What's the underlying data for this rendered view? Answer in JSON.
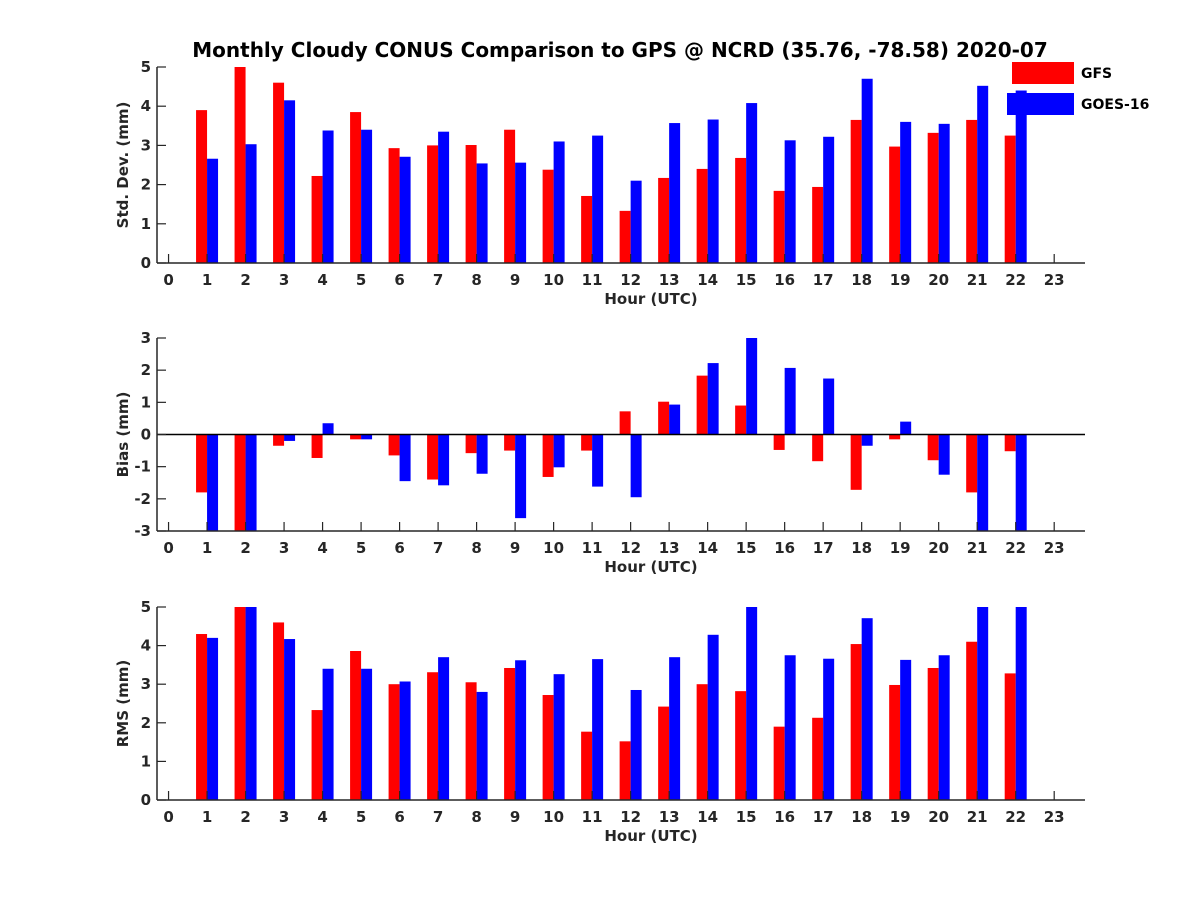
{
  "title": "Monthly Cloudy CONUS Comparison to GPS @ NCRD (35.76, -78.58) 2020-07",
  "legend": [
    {
      "label": "GFS",
      "color": "#ff0000"
    },
    {
      "label": "GOES-16",
      "color": "#0000ff"
    }
  ],
  "chart_data": [
    {
      "type": "bar",
      "ylabel": "Std. Dev. (mm)",
      "xlabel": "Hour (UTC)",
      "x": [
        0,
        1,
        2,
        3,
        4,
        5,
        6,
        7,
        8,
        9,
        10,
        11,
        12,
        13,
        14,
        15,
        16,
        17,
        18,
        19,
        20,
        21,
        22,
        23
      ],
      "xlim": [
        -0.3,
        23.8
      ],
      "ylim": [
        0,
        5
      ],
      "yticks": [
        0,
        1,
        2,
        3,
        4,
        5
      ],
      "series": [
        {
          "name": "GFS",
          "color": "#ff0000",
          "values": [
            null,
            3.9,
            5.0,
            4.6,
            2.22,
            3.85,
            2.93,
            3.0,
            3.01,
            3.4,
            2.38,
            1.71,
            1.33,
            2.17,
            2.4,
            2.68,
            1.84,
            1.94,
            3.65,
            2.97,
            3.32,
            3.65,
            3.25,
            null
          ]
        },
        {
          "name": "GOES-16",
          "color": "#0000ff",
          "values": [
            null,
            2.66,
            3.03,
            4.15,
            3.38,
            3.4,
            2.71,
            3.35,
            2.54,
            2.56,
            3.1,
            3.25,
            2.1,
            3.57,
            3.66,
            4.08,
            3.13,
            3.22,
            4.7,
            3.6,
            3.55,
            4.52,
            4.4,
            null
          ]
        }
      ]
    },
    {
      "type": "bar",
      "ylabel": "Bias (mm)",
      "xlabel": "Hour (UTC)",
      "x": [
        0,
        1,
        2,
        3,
        4,
        5,
        6,
        7,
        8,
        9,
        10,
        11,
        12,
        13,
        14,
        15,
        16,
        17,
        18,
        19,
        20,
        21,
        22,
        23
      ],
      "xlim": [
        -0.3,
        23.8
      ],
      "ylim": [
        -3,
        3
      ],
      "yticks": [
        -3,
        -2,
        -1,
        0,
        1,
        2,
        3
      ],
      "zero_line": true,
      "series": [
        {
          "name": "GFS",
          "color": "#ff0000",
          "values": [
            null,
            -1.8,
            -3.0,
            -0.35,
            -0.73,
            -0.15,
            -0.65,
            -1.4,
            -0.58,
            -0.5,
            -1.32,
            -0.5,
            0.72,
            1.02,
            1.83,
            0.9,
            -0.48,
            -0.83,
            -1.72,
            -0.15,
            -0.8,
            -1.8,
            -0.52,
            null
          ]
        },
        {
          "name": "GOES-16",
          "color": "#0000ff",
          "values": [
            null,
            -3.0,
            -3.0,
            -0.2,
            0.35,
            -0.15,
            -1.45,
            -1.58,
            -1.22,
            -2.6,
            -1.02,
            -1.62,
            -1.95,
            0.93,
            2.22,
            3.0,
            2.07,
            1.74,
            -0.35,
            0.4,
            -1.25,
            -3.0,
            -3.0,
            null
          ]
        }
      ]
    },
    {
      "type": "bar",
      "ylabel": "RMS (mm)",
      "xlabel": "Hour (UTC)",
      "x": [
        0,
        1,
        2,
        3,
        4,
        5,
        6,
        7,
        8,
        9,
        10,
        11,
        12,
        13,
        14,
        15,
        16,
        17,
        18,
        19,
        20,
        21,
        22,
        23
      ],
      "xlim": [
        -0.3,
        23.8
      ],
      "ylim": [
        0,
        5
      ],
      "yticks": [
        0,
        1,
        2,
        3,
        4,
        5
      ],
      "series": [
        {
          "name": "GFS",
          "color": "#ff0000",
          "values": [
            null,
            4.3,
            5.0,
            4.6,
            2.33,
            3.86,
            3.0,
            3.31,
            3.05,
            3.42,
            2.72,
            1.77,
            1.52,
            2.42,
            3.0,
            2.82,
            1.9,
            2.13,
            4.04,
            2.98,
            3.42,
            4.1,
            3.28,
            null
          ]
        },
        {
          "name": "GOES-16",
          "color": "#0000ff",
          "values": [
            null,
            4.2,
            5.0,
            4.17,
            3.4,
            3.4,
            3.07,
            3.7,
            2.8,
            3.62,
            3.26,
            3.65,
            2.85,
            3.7,
            4.28,
            5.0,
            3.75,
            3.66,
            4.71,
            3.63,
            3.75,
            5.0,
            5.0,
            null
          ]
        }
      ]
    }
  ]
}
